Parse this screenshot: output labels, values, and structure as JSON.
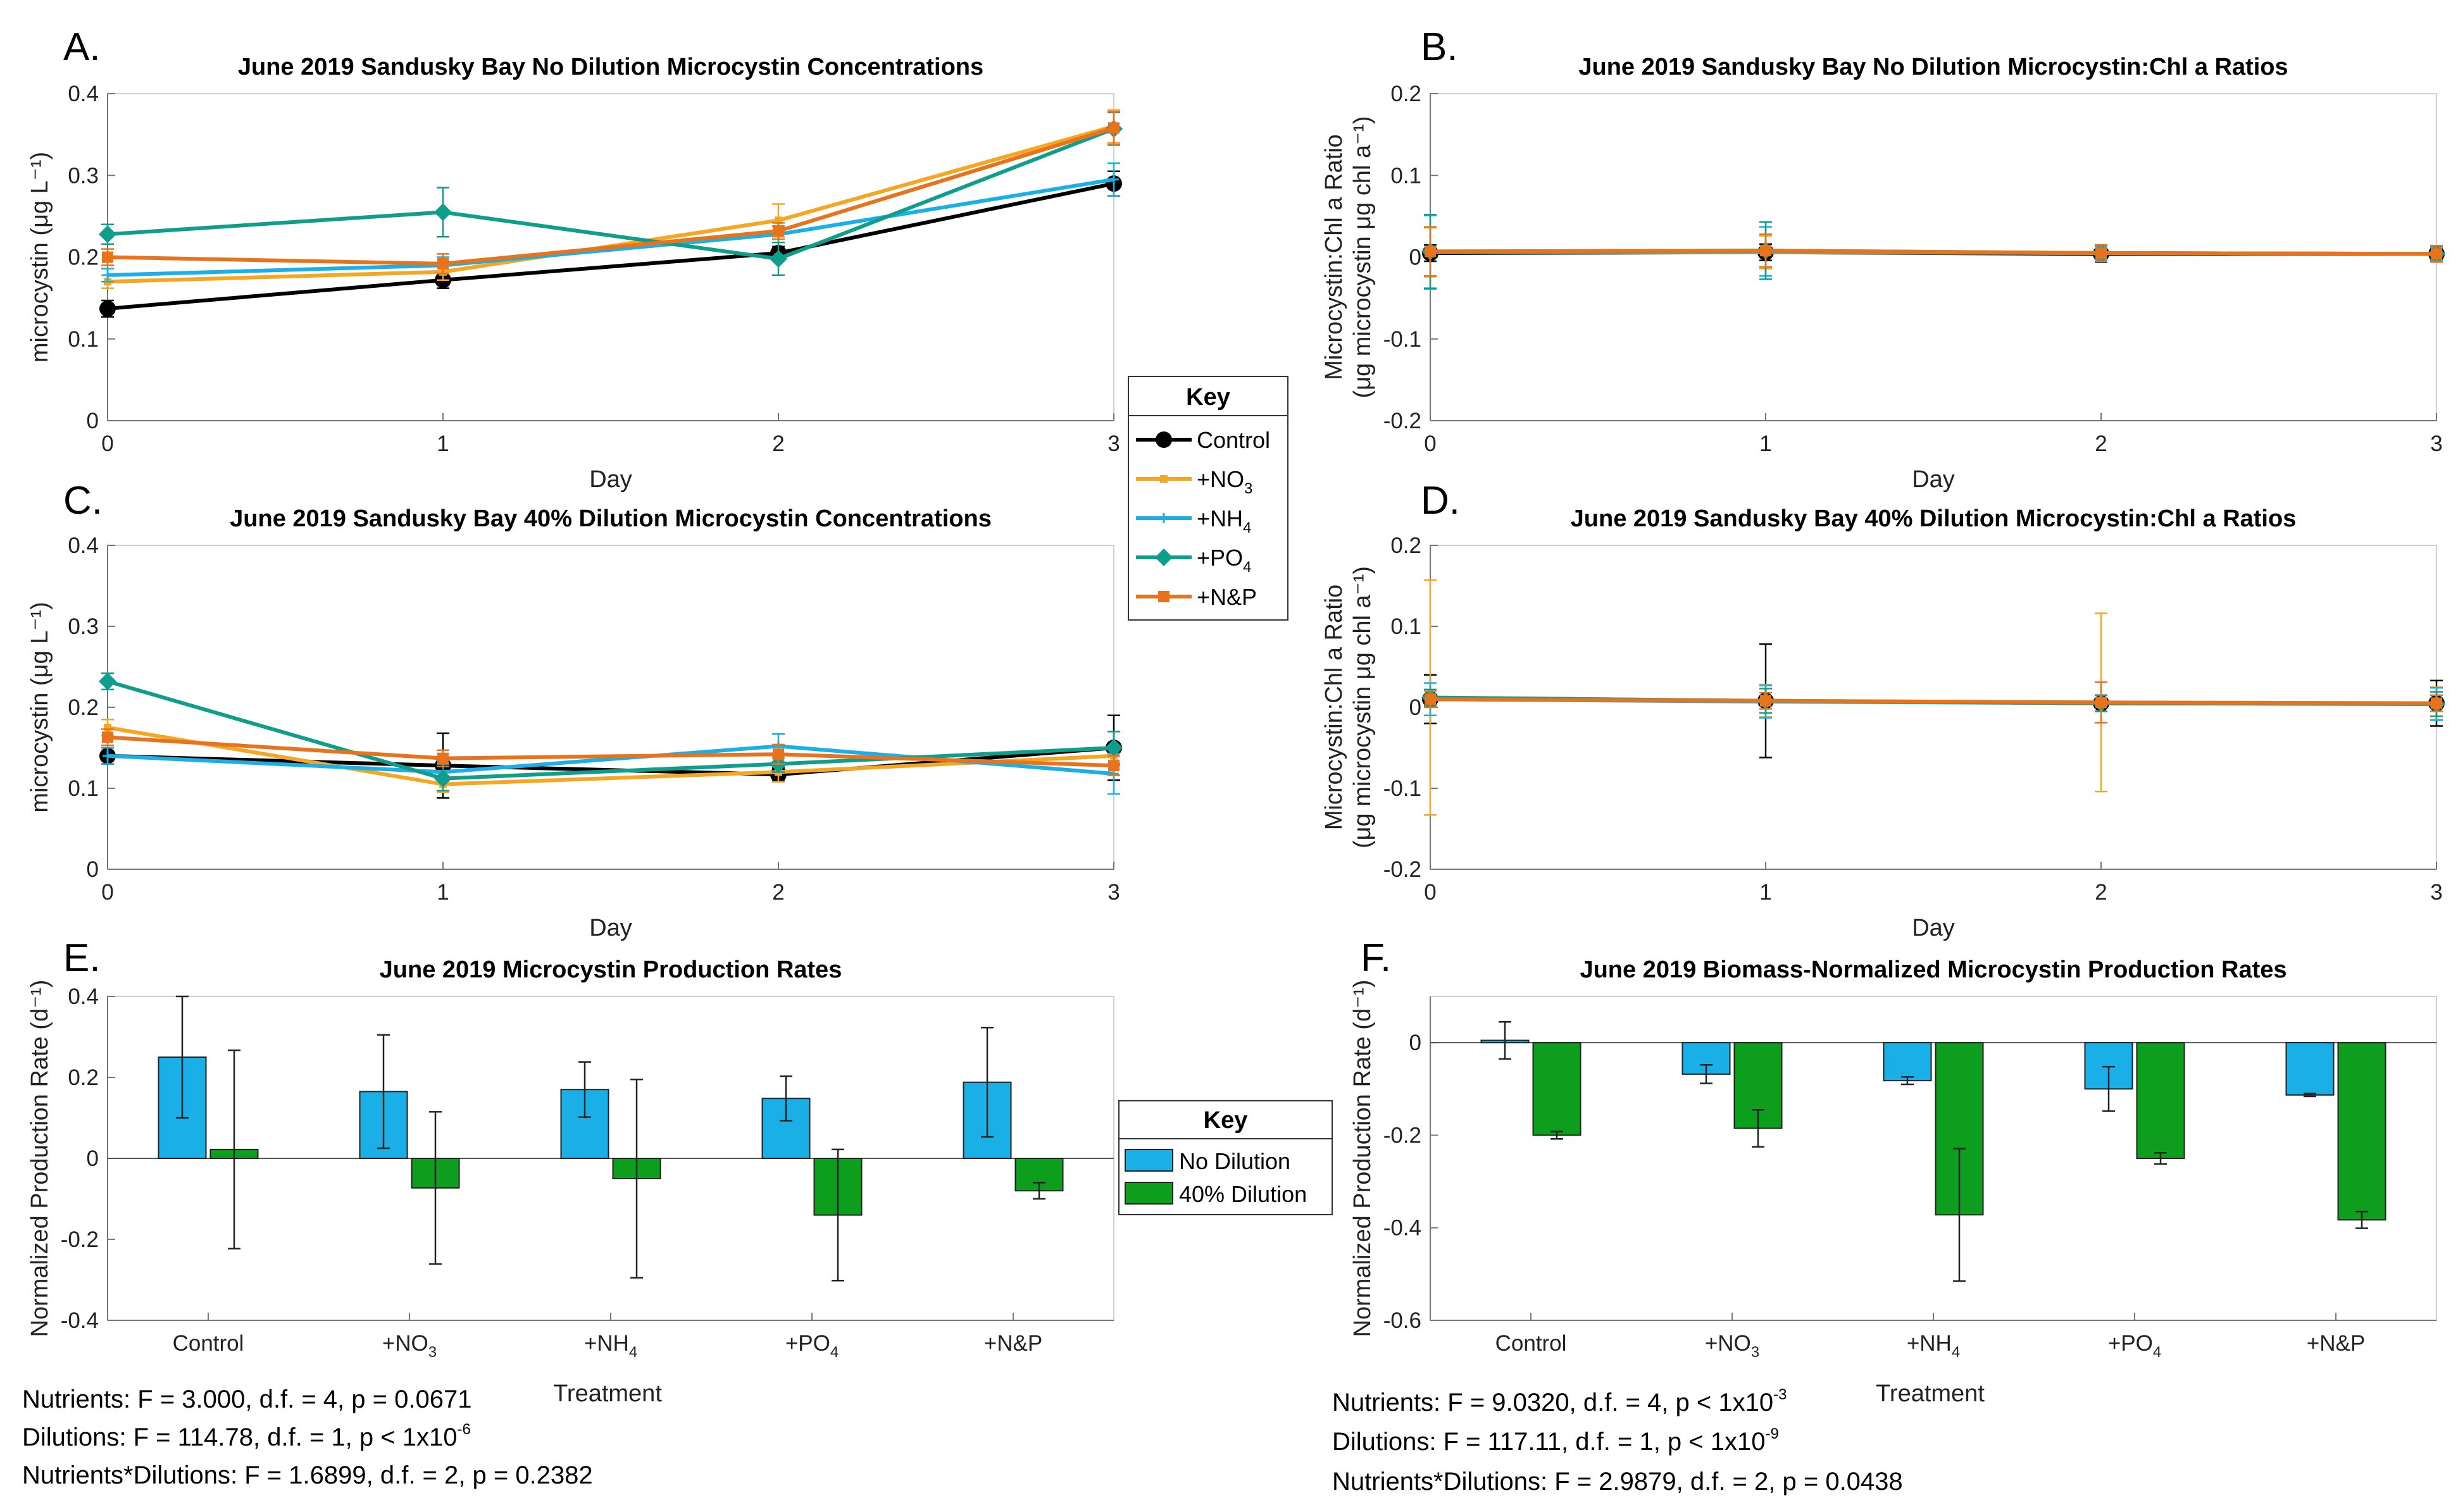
{
  "colors": {
    "Control": "#000000",
    "+NO3": "#F5A623",
    "+NH4": "#1AAFE6",
    "+PO4": "#109E8C",
    "+N&P": "#E8731C",
    "No Dilution": "#1AAFE6",
    "40% Dilution": "#0E9E1E"
  },
  "chart_data": [
    {
      "id": "A",
      "letter": "A.",
      "type": "line",
      "title": "June 2019 Sandusky Bay No Dilution Microcystin Concentrations",
      "ylabel": "microcystin (μg L⁻¹)",
      "xlabel": "Day",
      "xlim": [
        0,
        3
      ],
      "ylim": [
        0,
        0.4
      ],
      "xticks": [
        "0",
        "1",
        "2",
        "3"
      ],
      "yticks": [
        "0",
        "0.1",
        "0.2",
        "0.3",
        "0.4"
      ],
      "x": [
        0,
        1,
        2,
        3
      ],
      "series": [
        {
          "name": "Control",
          "values": [
            0.137,
            0.172,
            0.205,
            0.29
          ],
          "err": [
            0.01,
            0.01,
            0.008,
            0.015
          ]
        },
        {
          "name": "+NO3",
          "values": [
            0.17,
            0.182,
            0.245,
            0.36
          ],
          "err": [
            0.008,
            0.01,
            0.02,
            0.02
          ]
        },
        {
          "name": "+NH4",
          "values": [
            0.178,
            0.19,
            0.228,
            0.295
          ],
          "err": [
            0.008,
            0.01,
            0.01,
            0.02
          ]
        },
        {
          "name": "+PO4",
          "values": [
            0.228,
            0.255,
            0.198,
            0.357
          ],
          "err": [
            0.012,
            0.03,
            0.02,
            0.02
          ]
        },
        {
          "name": "+N&P",
          "values": [
            0.2,
            0.192,
            0.232,
            0.358
          ],
          "err": [
            0.01,
            0.012,
            0.01,
            0.02
          ]
        }
      ]
    },
    {
      "id": "B",
      "letter": "B.",
      "type": "line",
      "title": "June 2019 Sandusky Bay No Dilution Microcystin:Chl a Ratios",
      "ylabel1": "Microcystin:Chl a Ratio",
      "ylabel2": "(μg microcystin μg chl a⁻¹)",
      "xlabel": "Day",
      "xlim": [
        0,
        3
      ],
      "ylim": [
        -0.2,
        0.2
      ],
      "xticks": [
        "0",
        "1",
        "2",
        "3"
      ],
      "yticks": [
        "-0.2",
        "-0.1",
        "0",
        "0.1",
        "0.2"
      ],
      "x": [
        0,
        1,
        2,
        3
      ],
      "series": [
        {
          "name": "Control",
          "values": [
            0.005,
            0.006,
            0.004,
            0.004
          ],
          "err": [
            0.01,
            0.01,
            0.01,
            0.008
          ]
        },
        {
          "name": "+NO3",
          "values": [
            0.006,
            0.006,
            0.005,
            0.004
          ],
          "err": [
            0.03,
            0.02,
            0.008,
            0.01
          ]
        },
        {
          "name": "+NH4",
          "values": [
            0.006,
            0.007,
            0.005,
            0.004
          ],
          "err": [
            0.045,
            0.03,
            0.008,
            0.008
          ]
        },
        {
          "name": "+PO4",
          "values": [
            0.007,
            0.008,
            0.005,
            0.004
          ],
          "err": [
            0.045,
            0.035,
            0.01,
            0.01
          ]
        },
        {
          "name": "+N&P",
          "values": [
            0.007,
            0.008,
            0.005,
            0.004
          ],
          "err": [
            0.03,
            0.02,
            0.01,
            0.01
          ]
        }
      ]
    },
    {
      "id": "C",
      "letter": "C.",
      "type": "line",
      "title": "June 2019 Sandusky Bay 40% Dilution Microcystin Concentrations",
      "ylabel": "microcystin (μg L⁻¹)",
      "xlabel": "Day",
      "xlim": [
        0,
        3
      ],
      "ylim": [
        0,
        0.4
      ],
      "xticks": [
        "0",
        "1",
        "2",
        "3"
      ],
      "yticks": [
        "0",
        "0.1",
        "0.2",
        "0.3",
        "0.4"
      ],
      "x": [
        0,
        1,
        2,
        3
      ],
      "series": [
        {
          "name": "Control",
          "values": [
            0.14,
            0.128,
            0.117,
            0.15
          ],
          "err": [
            0.01,
            0.04,
            0.008,
            0.04
          ]
        },
        {
          "name": "+NO3",
          "values": [
            0.175,
            0.105,
            0.12,
            0.14
          ],
          "err": [
            0.01,
            0.01,
            0.012,
            0.012
          ]
        },
        {
          "name": "+NH4",
          "values": [
            0.14,
            0.12,
            0.152,
            0.118
          ],
          "err": [
            0.01,
            0.01,
            0.015,
            0.025
          ]
        },
        {
          "name": "+PO4",
          "values": [
            0.232,
            0.112,
            0.13,
            0.15
          ],
          "err": [
            0.01,
            0.015,
            0.01,
            0.02
          ]
        },
        {
          "name": "+N&P",
          "values": [
            0.163,
            0.137,
            0.142,
            0.128
          ],
          "err": [
            0.01,
            0.01,
            0.012,
            0.012
          ]
        }
      ]
    },
    {
      "id": "D",
      "letter": "D.",
      "type": "line",
      "title": "June 2019 Sandusky Bay 40% Dilution Microcystin:Chl a Ratios",
      "ylabel1": "Microcystin:Chl a Ratio",
      "ylabel2": "(μg microcystin μg chl a⁻¹)",
      "xlabel": "Day",
      "xlim": [
        0,
        3
      ],
      "ylim": [
        -0.2,
        0.2
      ],
      "xticks": [
        "0",
        "1",
        "2",
        "3"
      ],
      "yticks": [
        "-0.2",
        "-0.1",
        "0",
        "0.1",
        "0.2"
      ],
      "x": [
        0,
        1,
        2,
        3
      ],
      "series": [
        {
          "name": "Control",
          "values": [
            0.01,
            0.008,
            0.005,
            0.005
          ],
          "err": [
            0.03,
            0.07,
            0.01,
            0.028
          ]
        },
        {
          "name": "+NO3",
          "values": [
            0.012,
            0.008,
            0.006,
            0.005
          ],
          "err": [
            0.145,
            0.02,
            0.11,
            0.02
          ]
        },
        {
          "name": "+NH4",
          "values": [
            0.01,
            0.007,
            0.005,
            0.004
          ],
          "err": [
            0.02,
            0.02,
            0.01,
            0.02
          ]
        },
        {
          "name": "+PO4",
          "values": [
            0.012,
            0.008,
            0.005,
            0.004
          ],
          "err": [
            0.01,
            0.015,
            0.01,
            0.015
          ]
        },
        {
          "name": "+N&P",
          "values": [
            0.01,
            0.008,
            0.006,
            0.005
          ],
          "err": [
            0.01,
            0.01,
            0.025,
            0.01
          ]
        }
      ]
    },
    {
      "id": "E",
      "letter": "E.",
      "type": "bar",
      "title": "June 2019 Microcystin Production Rates",
      "ylabel": "Normalized Production Rate (d⁻¹)",
      "xlabel": "Treatment",
      "ylim": [
        -0.4,
        0.4
      ],
      "yticks": [
        "-0.4",
        "-0.2",
        "0",
        "0.2",
        "0.4"
      ],
      "categories": [
        "Control",
        "+NO3",
        "+NH4",
        "+PO4",
        "+N&P"
      ],
      "series": [
        {
          "name": "No Dilution",
          "values": [
            0.25,
            0.165,
            0.17,
            0.148,
            0.188
          ],
          "err": [
            0.15,
            0.14,
            0.068,
            0.055,
            0.135
          ]
        },
        {
          "name": "40% Dilution",
          "values": [
            0.022,
            -0.073,
            -0.05,
            -0.14,
            -0.08
          ],
          "err": [
            0.245,
            0.188,
            0.245,
            0.162,
            0.02
          ]
        }
      ]
    },
    {
      "id": "F",
      "letter": "F.",
      "type": "bar",
      "title": "June 2019 Biomass-Normalized Microcystin Production Rates",
      "ylabel": "Normalized Production Rate (d⁻¹)",
      "xlabel": "Treatment",
      "ylim": [
        -0.6,
        0.1
      ],
      "yticks": [
        "-0.6",
        "-0.4",
        "-0.2",
        "0"
      ],
      "categories": [
        "Control",
        "+NO3",
        "+NH4",
        "+PO4",
        "+N&P"
      ],
      "series": [
        {
          "name": "No Dilution",
          "values": [
            0.005,
            -0.068,
            -0.082,
            -0.1,
            -0.113
          ],
          "err": [
            0.04,
            0.02,
            0.008,
            0.048,
            0.003
          ]
        },
        {
          "name": "40% Dilution",
          "values": [
            -0.2,
            -0.185,
            -0.372,
            -0.25,
            -0.383
          ],
          "err": [
            0.008,
            0.04,
            0.143,
            0.012,
            0.018
          ]
        }
      ]
    }
  ],
  "legend_lines": {
    "title": "Key",
    "items": [
      {
        "name": "Control",
        "label": "Control"
      },
      {
        "name": "+NO3",
        "label": "+NO",
        "sub": "3"
      },
      {
        "name": "+NH4",
        "label": "+NH",
        "sub": "4"
      },
      {
        "name": "+PO4",
        "label": "+PO",
        "sub": "4"
      },
      {
        "name": "+N&P",
        "label": "+N&P"
      }
    ]
  },
  "legend_bars": {
    "title": "Key",
    "items": [
      {
        "name": "No Dilution",
        "label": "No Dilution"
      },
      {
        "name": "40% Dilution",
        "label": "40% Dilution"
      }
    ]
  },
  "stats_E": {
    "line1": "Nutrients: F = 3.000, d.f. = 4, p = 0.0671",
    "line2_pre": "Dilutions: F = 114.78, d.f. = 1, p < 1x10",
    "line2_exp": "-6",
    "line3": "Nutrients*Dilutions: F = 1.6899, d.f. = 2, p = 0.2382"
  },
  "stats_F": {
    "line1_pre": "Nutrients: F = 9.0320, d.f. = 4, p < 1x10",
    "line1_exp": "-3",
    "line2_pre": "Dilutions: F = 117.11, d.f. = 1, p < 1x10",
    "line2_exp": "-9",
    "line3": "Nutrients*Dilutions: F = 2.9879, d.f. = 2, p = 0.0438"
  }
}
